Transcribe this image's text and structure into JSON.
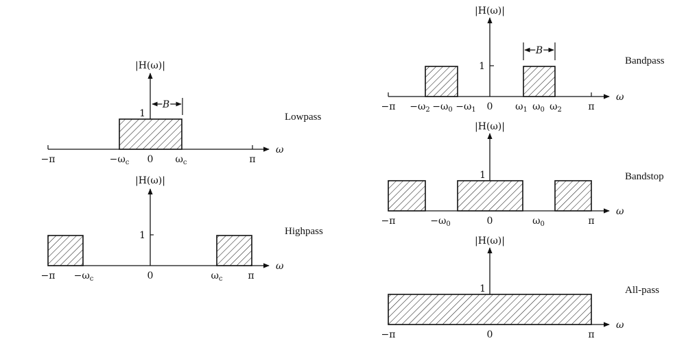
{
  "panels": [
    {
      "id": "lowpass",
      "name": "Lowpass",
      "ylabel": "|H(ω)|",
      "one": "1",
      "bandwidth": "B",
      "ticks": [
        {
          "t": "−π"
        },
        {
          "t": "−ω",
          "sub": "c"
        },
        {
          "t": "0"
        },
        {
          "t": "ω",
          "sub": "c"
        },
        {
          "t": "π"
        }
      ],
      "omega": "ω"
    },
    {
      "id": "highpass",
      "name": "Highpass",
      "ylabel": "|H(ω)|",
      "one": "1",
      "ticks": [
        {
          "t": "−π"
        },
        {
          "t": "−ω",
          "sub": "c"
        },
        {
          "t": "0"
        },
        {
          "t": "ω",
          "sub": "c"
        },
        {
          "t": "π"
        }
      ],
      "omega": "ω"
    },
    {
      "id": "bandpass",
      "name": "Bandpass",
      "ylabel": "|H(ω)|",
      "one": "1",
      "bandwidth": "B",
      "ticks": [
        {
          "t": "−π"
        },
        {
          "t": "−ω",
          "sub": "2"
        },
        {
          "t": "−ω",
          "sub": "0"
        },
        {
          "t": "−ω",
          "sub": "1"
        },
        {
          "t": "0"
        },
        {
          "t": "ω",
          "sub": "1"
        },
        {
          "t": "ω",
          "sub": "0"
        },
        {
          "t": "ω",
          "sub": "2"
        },
        {
          "t": "π"
        }
      ],
      "omega": "ω"
    },
    {
      "id": "bandstop",
      "name": "Bandstop",
      "ylabel": "|H(ω)|",
      "one": "1",
      "ticks": [
        {
          "t": "−π"
        },
        {
          "t": "−ω",
          "sub": "0"
        },
        {
          "t": "0"
        },
        {
          "t": "ω",
          "sub": "0"
        },
        {
          "t": "π"
        }
      ],
      "omega": "ω"
    },
    {
      "id": "allpass",
      "name": "All-pass",
      "ylabel": "|H(ω)|",
      "one": "1",
      "ticks": [
        {
          "t": "−π"
        },
        {
          "t": "0"
        },
        {
          "t": "π"
        }
      ],
      "omega": "ω"
    }
  ]
}
